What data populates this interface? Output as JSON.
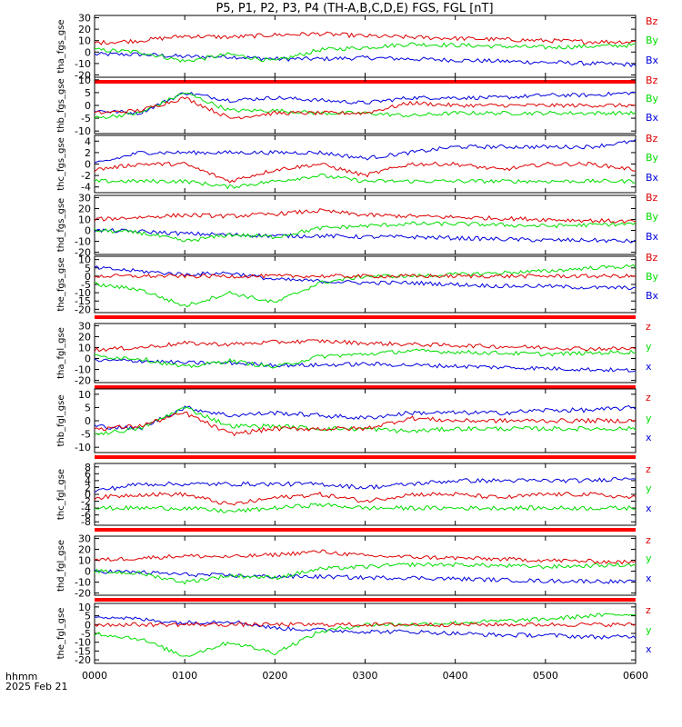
{
  "title": "P5, P1, P2, P3, P4 (TH-A,B,C,D,E) FGS, FGL [nT]",
  "footer": {
    "unit": "hhmm",
    "date": "2025 Feb 21"
  },
  "colors": {
    "x": "#0000dd",
    "y": "#00dd00",
    "z": "#dd0000",
    "flag": "#ff0000",
    "flag_mark": "#ffff00",
    "frame": "#000000"
  },
  "chart_data": [
    {
      "type": "line",
      "ylabel": "tha_fgs_gse",
      "ylim": [
        -22,
        32
      ],
      "yticks": [
        30,
        20,
        10,
        0,
        -10,
        -20
      ],
      "legend": [
        "Bz",
        "By",
        "Bx"
      ],
      "flag_bar_below": true,
      "x": [
        "0000",
        "0030",
        "0100",
        "0130",
        "0200",
        "0230",
        "0300",
        "0330",
        "0400",
        "0430",
        "0500",
        "0530",
        "0600"
      ],
      "series": [
        {
          "name": "Bz",
          "values": [
            8,
            10,
            14,
            13,
            15,
            16,
            14,
            13,
            12,
            11,
            10,
            9,
            9
          ]
        },
        {
          "name": "By",
          "values": [
            2,
            0,
            -8,
            -2,
            -8,
            2,
            4,
            7,
            6,
            5,
            4,
            5,
            6
          ]
        },
        {
          "name": "Bx",
          "values": [
            -2,
            -2,
            -4,
            -4,
            -6,
            -6,
            -5,
            -6,
            -7,
            -8,
            -9,
            -10,
            -11
          ]
        }
      ]
    },
    {
      "type": "line",
      "ylabel": "thb_fgs_gse",
      "ylim": [
        -11,
        11
      ],
      "yticks": [
        10,
        5,
        0,
        -5,
        -10
      ],
      "legend": [
        "Bz",
        "By",
        "Bx"
      ],
      "x": [
        "0000",
        "0030",
        "0100",
        "0130",
        "0200",
        "0230",
        "0300",
        "0330",
        "0400",
        "0430",
        "0500",
        "0530",
        "0600"
      ],
      "series": [
        {
          "name": "Bz",
          "values": [
            -3,
            -2,
            3,
            -5,
            -3,
            -3,
            -3,
            1,
            0,
            0,
            0,
            0,
            0
          ]
        },
        {
          "name": "By",
          "values": [
            -5,
            -3,
            5,
            -2,
            -2,
            -3,
            -3,
            -4,
            -3,
            -3,
            -3,
            -3,
            -3
          ]
        },
        {
          "name": "Bx",
          "values": [
            -2,
            -3,
            5,
            2,
            3,
            2,
            1,
            3,
            3,
            3,
            4,
            4,
            5
          ]
        }
      ]
    },
    {
      "type": "line",
      "ylabel": "thc_fgs_gse",
      "ylim": [
        -5,
        5
      ],
      "yticks": [
        4,
        2,
        0,
        -2,
        -4
      ],
      "legend": [
        "Bz",
        "By",
        "Bx"
      ],
      "x": [
        "0000",
        "0030",
        "0100",
        "0130",
        "0200",
        "0230",
        "0300",
        "0330",
        "0400",
        "0430",
        "0500",
        "0530",
        "0600"
      ],
      "series": [
        {
          "name": "Bz",
          "values": [
            -1,
            0,
            0,
            -3,
            -1,
            0,
            -2,
            0,
            0,
            -1,
            0,
            0,
            -1
          ]
        },
        {
          "name": "By",
          "values": [
            -3,
            -3,
            -3,
            -4,
            -3,
            -2,
            -3,
            -3,
            -3,
            -3,
            -3,
            -3,
            -3
          ]
        },
        {
          "name": "Bx",
          "values": [
            0,
            2,
            2,
            2,
            2,
            2,
            1,
            2,
            3,
            3,
            3,
            3,
            4
          ]
        }
      ]
    },
    {
      "type": "line",
      "ylabel": "thd_fgs_gse",
      "ylim": [
        -22,
        32
      ],
      "yticks": [
        30,
        20,
        10,
        0,
        -10,
        -20
      ],
      "legend": [
        "Bz",
        "By",
        "Bx"
      ],
      "x": [
        "0000",
        "0030",
        "0100",
        "0130",
        "0200",
        "0230",
        "0300",
        "0330",
        "0400",
        "0430",
        "0500",
        "0530",
        "0600"
      ],
      "series": [
        {
          "name": "Bz",
          "values": [
            10,
            12,
            14,
            13,
            15,
            18,
            14,
            13,
            12,
            11,
            10,
            9,
            8
          ]
        },
        {
          "name": "By",
          "values": [
            0,
            -2,
            -10,
            -4,
            -6,
            2,
            4,
            6,
            6,
            5,
            4,
            5,
            6
          ]
        },
        {
          "name": "Bx",
          "values": [
            0,
            -1,
            -3,
            -4,
            -5,
            -5,
            -6,
            -6,
            -7,
            -8,
            -9,
            -9,
            -10
          ]
        }
      ]
    },
    {
      "type": "line",
      "ylabel": "the_fgs_gse",
      "ylim": [
        -22,
        12
      ],
      "yticks": [
        10,
        5,
        0,
        -5,
        -10,
        -15,
        -20
      ],
      "legend": [
        "Bz",
        "By",
        "Bx"
      ],
      "flag_bar_below": true,
      "x": [
        "0000",
        "0030",
        "0100",
        "0130",
        "0200",
        "0230",
        "0300",
        "0330",
        "0400",
        "0430",
        "0500",
        "0530",
        "0600"
      ],
      "series": [
        {
          "name": "Bz",
          "values": [
            0,
            0,
            0,
            0,
            0,
            0,
            0,
            0,
            0,
            0,
            0,
            0,
            0
          ]
        },
        {
          "name": "By",
          "values": [
            -5,
            -8,
            -18,
            -10,
            -16,
            -4,
            0,
            0,
            1,
            2,
            3,
            5,
            6
          ]
        },
        {
          "name": "Bx",
          "values": [
            5,
            3,
            1,
            2,
            -2,
            -3,
            -4,
            -4,
            -5,
            -6,
            -6,
            -7,
            -7
          ]
        }
      ]
    },
    {
      "type": "line",
      "ylabel": "tha_fgl_gse",
      "ylim": [
        -22,
        32
      ],
      "yticks": [
        30,
        20,
        10,
        0,
        -10,
        -20
      ],
      "legend": [
        "z",
        "y",
        "x"
      ],
      "flag_bar_below": true,
      "x": [
        "0000",
        "0030",
        "0100",
        "0130",
        "0200",
        "0230",
        "0300",
        "0330",
        "0400",
        "0430",
        "0500",
        "0530",
        "0600"
      ],
      "series": [
        {
          "name": "z",
          "values": [
            8,
            10,
            14,
            13,
            15,
            16,
            14,
            13,
            12,
            11,
            10,
            9,
            9
          ]
        },
        {
          "name": "y",
          "values": [
            2,
            0,
            -8,
            -2,
            -8,
            2,
            4,
            7,
            6,
            5,
            4,
            5,
            6
          ]
        },
        {
          "name": "x",
          "values": [
            -2,
            -2,
            -4,
            -4,
            -6,
            -6,
            -5,
            -6,
            -7,
            -8,
            -9,
            -10,
            -11
          ]
        }
      ]
    },
    {
      "type": "line",
      "ylabel": "thb_fgl_gse",
      "ylim": [
        -12,
        12
      ],
      "yticks": [
        10,
        5,
        0,
        -5,
        -10
      ],
      "legend": [
        "z",
        "y",
        "x"
      ],
      "flag_bar_below": true,
      "x": [
        "0000",
        "0030",
        "0100",
        "0130",
        "0200",
        "0230",
        "0300",
        "0330",
        "0400",
        "0430",
        "0500",
        "0530",
        "0600"
      ],
      "series": [
        {
          "name": "z",
          "values": [
            -3,
            -2,
            3,
            -5,
            -3,
            -3,
            -3,
            1,
            0,
            0,
            0,
            0,
            0
          ]
        },
        {
          "name": "y",
          "values": [
            -5,
            -3,
            5,
            -2,
            -2,
            -3,
            -3,
            -4,
            -3,
            -3,
            -3,
            -3,
            -3
          ]
        },
        {
          "name": "x",
          "values": [
            -2,
            -3,
            5,
            2,
            3,
            2,
            1,
            3,
            3,
            3,
            4,
            4,
            5
          ]
        }
      ]
    },
    {
      "type": "line",
      "ylabel": "thc_fgl_gse",
      "ylim": [
        -9,
        9
      ],
      "yticks": [
        8,
        6,
        4,
        2,
        0,
        -2,
        -4,
        -6,
        -8
      ],
      "legend": [
        "z",
        "y",
        "x"
      ],
      "flag_bar_below": true,
      "x": [
        "0000",
        "0030",
        "0100",
        "0130",
        "0200",
        "0230",
        "0300",
        "0330",
        "0400",
        "0430",
        "0500",
        "0530",
        "0600"
      ],
      "series": [
        {
          "name": "z",
          "values": [
            -1,
            0,
            0,
            -3,
            -1,
            0,
            -2,
            0,
            0,
            -1,
            0,
            0,
            -1
          ]
        },
        {
          "name": "y",
          "values": [
            -4,
            -4,
            -4,
            -5,
            -4,
            -3,
            -4,
            -4,
            -4,
            -4,
            -4,
            -4,
            -4
          ]
        },
        {
          "name": "x",
          "values": [
            1,
            3,
            3,
            3,
            3,
            3,
            2,
            3,
            4,
            4,
            4,
            4,
            5
          ]
        }
      ]
    },
    {
      "type": "line",
      "ylabel": "thd_fgl_gse",
      "ylim": [
        -22,
        32
      ],
      "yticks": [
        30,
        20,
        10,
        0,
        -10,
        -20
      ],
      "legend": [
        "z",
        "y",
        "x"
      ],
      "flag_bar_below": true,
      "x": [
        "0000",
        "0030",
        "0100",
        "0130",
        "0200",
        "0230",
        "0300",
        "0330",
        "0400",
        "0430",
        "0500",
        "0530",
        "0600"
      ],
      "series": [
        {
          "name": "z",
          "values": [
            10,
            12,
            14,
            13,
            15,
            18,
            14,
            13,
            12,
            11,
            10,
            9,
            8
          ]
        },
        {
          "name": "y",
          "values": [
            0,
            -2,
            -10,
            -4,
            -6,
            2,
            4,
            6,
            6,
            5,
            4,
            5,
            6
          ]
        },
        {
          "name": "x",
          "values": [
            0,
            -1,
            -3,
            -4,
            -5,
            -5,
            -6,
            -6,
            -7,
            -8,
            -9,
            -9,
            -10
          ]
        }
      ]
    },
    {
      "type": "line",
      "ylabel": "the_fgl_gse",
      "ylim": [
        -22,
        12
      ],
      "yticks": [
        10,
        5,
        0,
        -5,
        -10,
        -15,
        -20
      ],
      "legend": [
        "z",
        "y",
        "x"
      ],
      "x": [
        "0000",
        "0030",
        "0100",
        "0130",
        "0200",
        "0230",
        "0300",
        "0330",
        "0400",
        "0430",
        "0500",
        "0530",
        "0600"
      ],
      "series": [
        {
          "name": "z",
          "values": [
            0,
            0,
            0,
            0,
            0,
            0,
            0,
            0,
            0,
            0,
            0,
            0,
            0
          ]
        },
        {
          "name": "y",
          "values": [
            -5,
            -8,
            -18,
            -10,
            -16,
            -4,
            0,
            0,
            1,
            2,
            3,
            5,
            6
          ]
        },
        {
          "name": "x",
          "values": [
            5,
            3,
            1,
            2,
            -2,
            -3,
            -4,
            -4,
            -5,
            -6,
            -6,
            -7,
            -7
          ]
        }
      ]
    }
  ],
  "x_axis": {
    "ticks": [
      "0000",
      "0100",
      "0200",
      "0300",
      "0400",
      "0500",
      "0600"
    ]
  }
}
